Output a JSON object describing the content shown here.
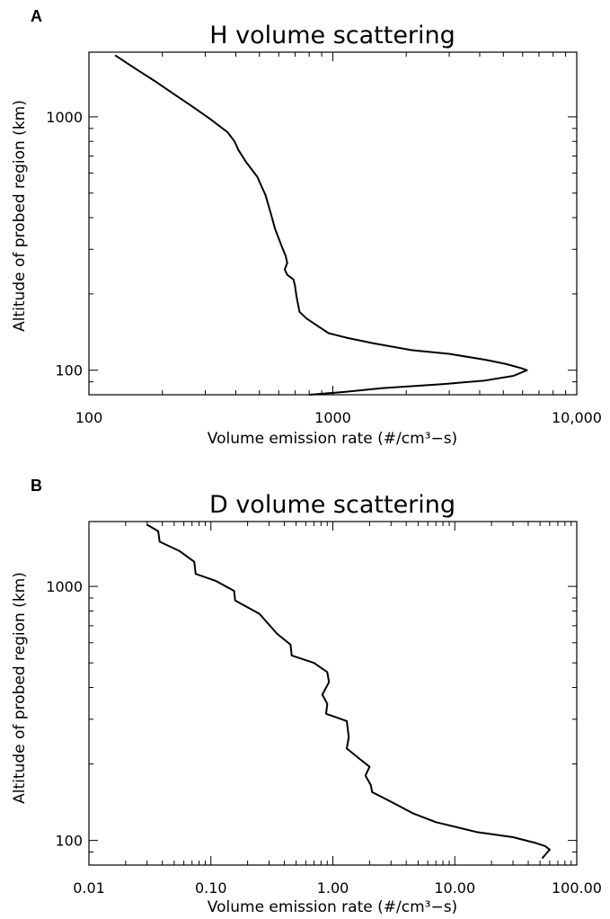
{
  "chart_data": [
    {
      "panel_label": "A",
      "type": "line",
      "title": "H volume scattering",
      "xlabel": "Volume emission rate (#/cm³−s)",
      "ylabel": "Altitude of probed region (km)",
      "xscale": "log",
      "yscale": "log",
      "xlim": [
        100,
        10000
      ],
      "ylim": [
        80,
        1800
      ],
      "xticks": [
        100,
        1000,
        10000
      ],
      "xticklabels": [
        "100",
        "1000",
        "10,000"
      ],
      "yticks": [
        100,
        1000
      ],
      "yticklabels": [
        "100",
        "1000"
      ],
      "series": [
        {
          "x": [
            128,
            155,
            185,
            220,
            265,
            310,
            370,
            395,
            410,
            440,
            490,
            530,
            555,
            580,
            620,
            640,
            650,
            635,
            650,
            690,
            700,
            710,
            730,
            780,
            880,
            960,
            1150,
            1450,
            2100,
            3000,
            4200,
            5100,
            5900,
            6250,
            5500,
            4200,
            2800,
            1600,
            1100,
            800
          ],
          "y": [
            1750,
            1550,
            1390,
            1240,
            1100,
            990,
            870,
            800,
            740,
            665,
            580,
            490,
            420,
            360,
            305,
            283,
            265,
            250,
            238,
            228,
            215,
            195,
            170,
            160,
            148,
            140,
            134,
            128,
            120,
            116,
            110,
            106,
            102,
            100,
            95,
            91,
            88,
            85,
            82,
            80
          ]
        }
      ]
    },
    {
      "panel_label": "B",
      "type": "line",
      "title": "D volume scattering",
      "xlabel": "Volume emission rate (#/cm³−s)",
      "ylabel": "Altitude of probed region (km)",
      "xscale": "log",
      "yscale": "log",
      "xlim": [
        0.01,
        100
      ],
      "ylim": [
        80,
        1800
      ],
      "xticks": [
        0.01,
        0.1,
        1,
        10,
        100
      ],
      "xticklabels": [
        "0.01",
        "0.10",
        "1.00",
        "10.00",
        "100.00"
      ],
      "yticks": [
        100,
        1000
      ],
      "yticklabels": [
        "100",
        "1000"
      ],
      "series": [
        {
          "x": [
            0.03,
            0.037,
            0.038,
            0.055,
            0.073,
            0.075,
            0.11,
            0.155,
            0.158,
            0.25,
            0.35,
            0.45,
            0.46,
            0.7,
            0.9,
            0.93,
            0.82,
            0.9,
            0.88,
            1.3,
            1.35,
            1.3,
            1.75,
            2.0,
            1.85,
            2.05,
            2.1,
            3.0,
            4.5,
            7.0,
            15,
            30,
            45,
            55,
            60,
            52
          ],
          "y": [
            1750,
            1650,
            1500,
            1380,
            1250,
            1120,
            1050,
            960,
            880,
            780,
            650,
            590,
            535,
            500,
            460,
            420,
            375,
            345,
            315,
            295,
            255,
            230,
            205,
            195,
            180,
            165,
            155,
            142,
            128,
            118,
            108,
            103,
            98,
            95,
            92,
            85
          ]
        }
      ]
    }
  ]
}
